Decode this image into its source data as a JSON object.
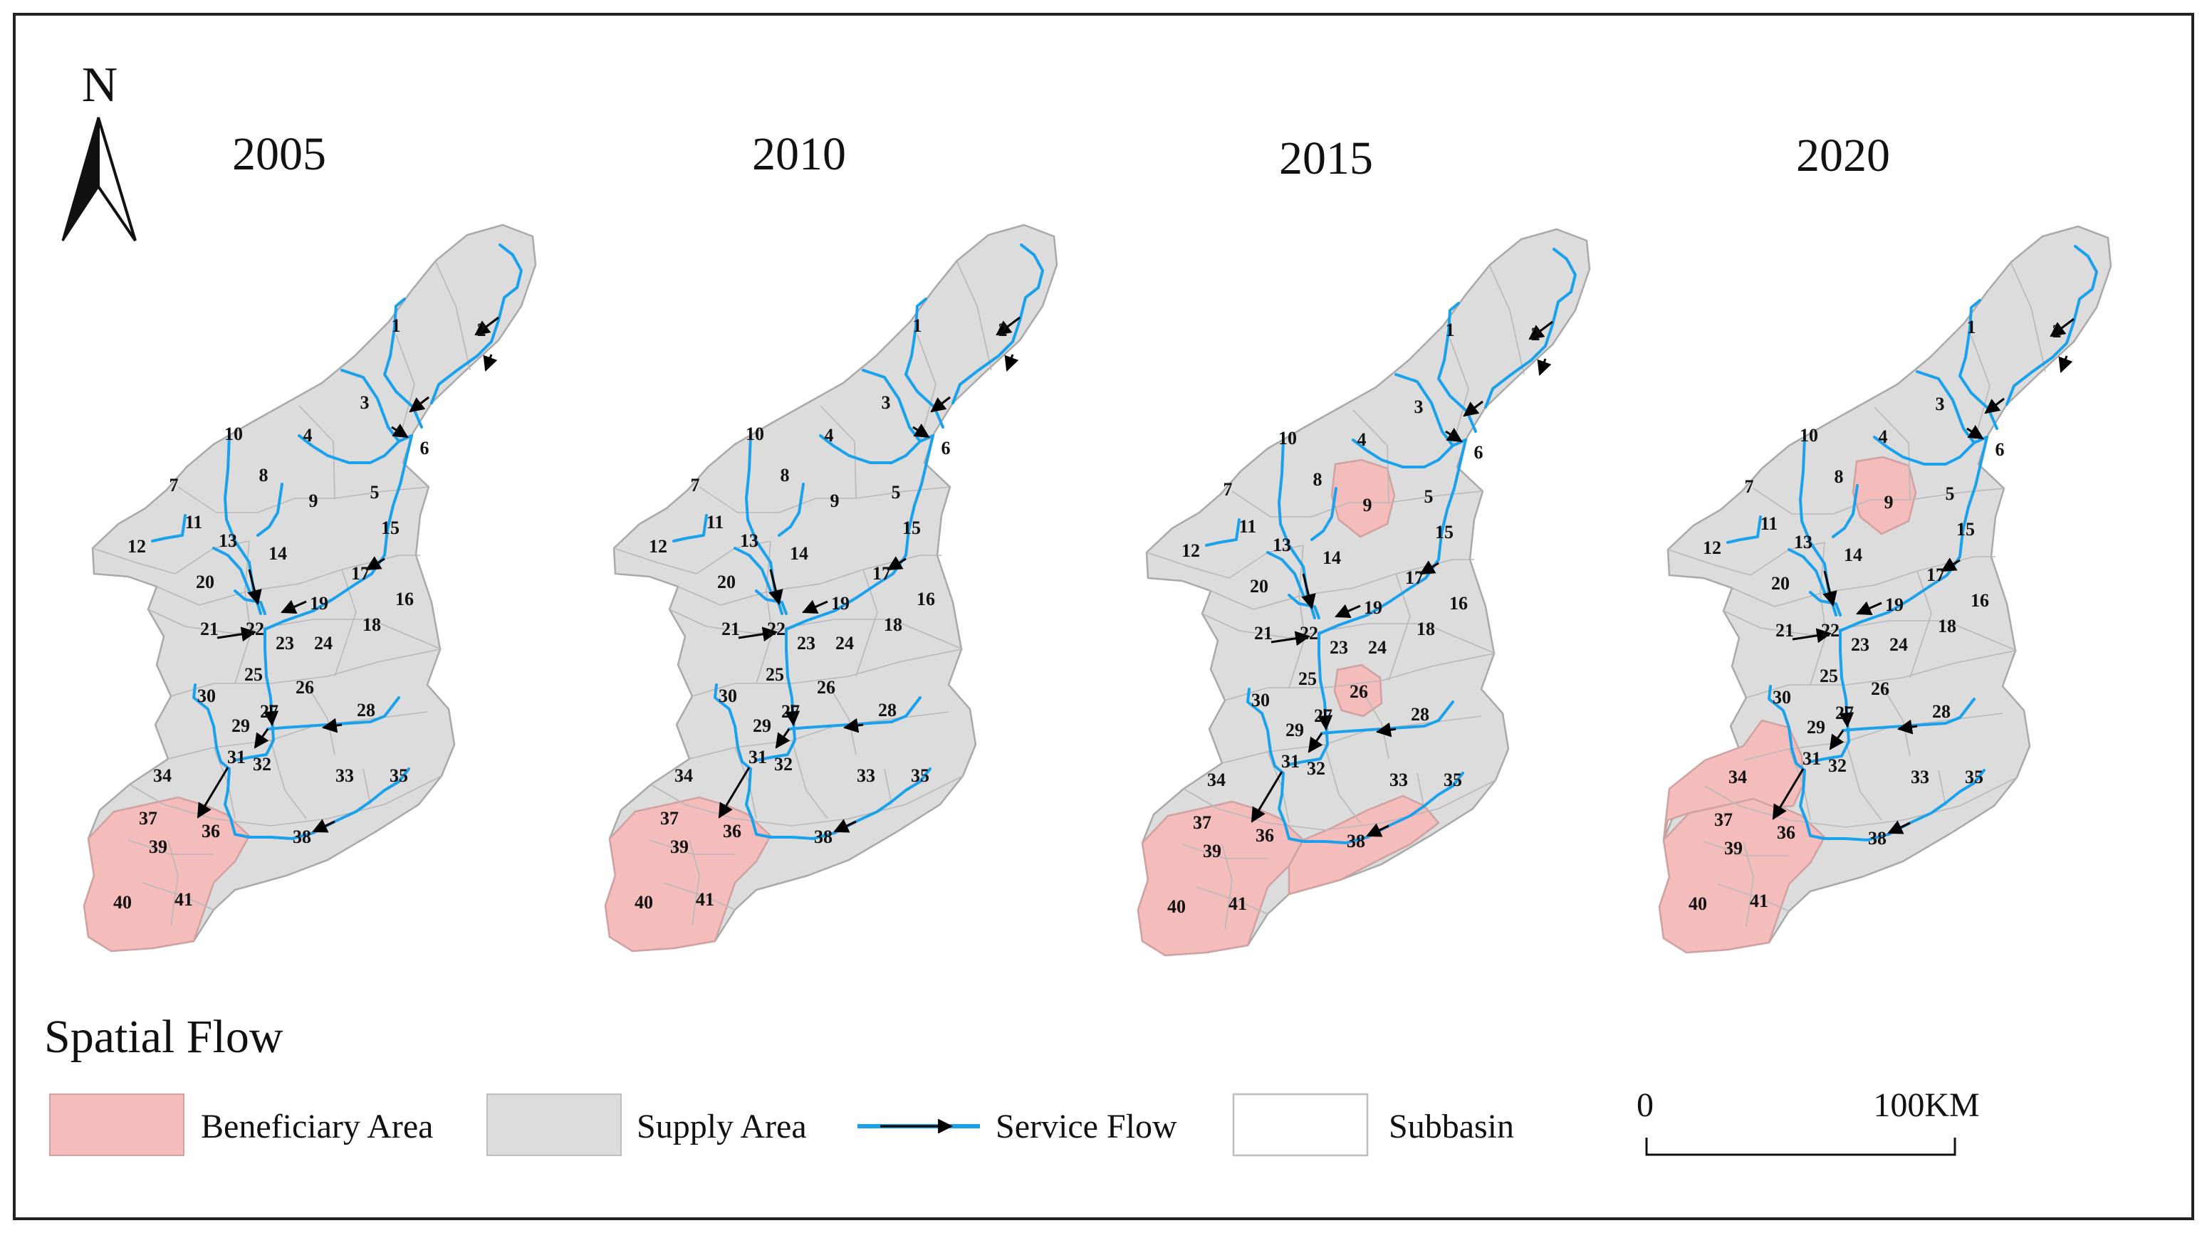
{
  "north_label": "N",
  "years": [
    "2005",
    "2010",
    "2015",
    "2020"
  ],
  "subbasin_ids": [
    "1",
    "2",
    "3",
    "4",
    "5",
    "6",
    "7",
    "8",
    "9",
    "10",
    "11",
    "12",
    "13",
    "14",
    "15",
    "16",
    "17",
    "18",
    "19",
    "20",
    "21",
    "22",
    "23",
    "24",
    "25",
    "26",
    "27",
    "28",
    "29",
    "30",
    "31",
    "32",
    "33",
    "34",
    "35",
    "36",
    "37",
    "38",
    "39",
    "40",
    "41"
  ],
  "beneficiary_subbasins": {
    "2005": [
      "36",
      "37",
      "39",
      "40",
      "41"
    ],
    "2010": [
      "36",
      "37",
      "39",
      "40",
      "41"
    ],
    "2015": [
      "9",
      "26",
      "36",
      "37",
      "38",
      "39",
      "40",
      "41"
    ],
    "2020": [
      "9",
      "34",
      "36",
      "37",
      "39",
      "40",
      "41"
    ]
  },
  "legend": {
    "title": "Spatial Flow",
    "beneficiary": "Beneficiary Area",
    "supply": "Supply Area",
    "flow": "Service Flow",
    "subbasin": "Subbasin"
  },
  "scale": {
    "start": "0",
    "end": "100KM"
  },
  "colors": {
    "beneficiary": "#f5bcbc",
    "supply": "#dcdcdc",
    "river": "#1aa1ec",
    "arrow": "#000000"
  }
}
